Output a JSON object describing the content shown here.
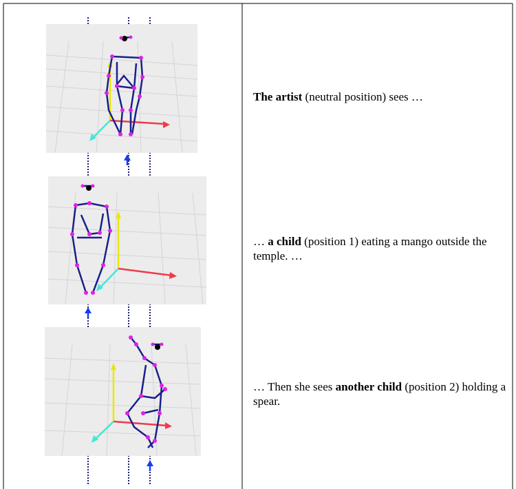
{
  "table": {
    "rows": [
      {
        "segments": [
          {
            "text": "The artist",
            "bold": true
          },
          {
            "text": " (neutral position) sees …",
            "bold": false
          }
        ]
      },
      {
        "segments": [
          {
            "text": "… ",
            "bold": false
          },
          {
            "text": "a child",
            "bold": true
          },
          {
            "text": " (position 1) eating a mango outside the temple. …",
            "bold": false
          }
        ]
      },
      {
        "segments": [
          {
            "text": "… Then she sees ",
            "bold": false
          },
          {
            "text": "another child",
            "bold": true
          },
          {
            "text": " (position 2) holding a spear.",
            "bold": false
          }
        ]
      }
    ]
  }
}
